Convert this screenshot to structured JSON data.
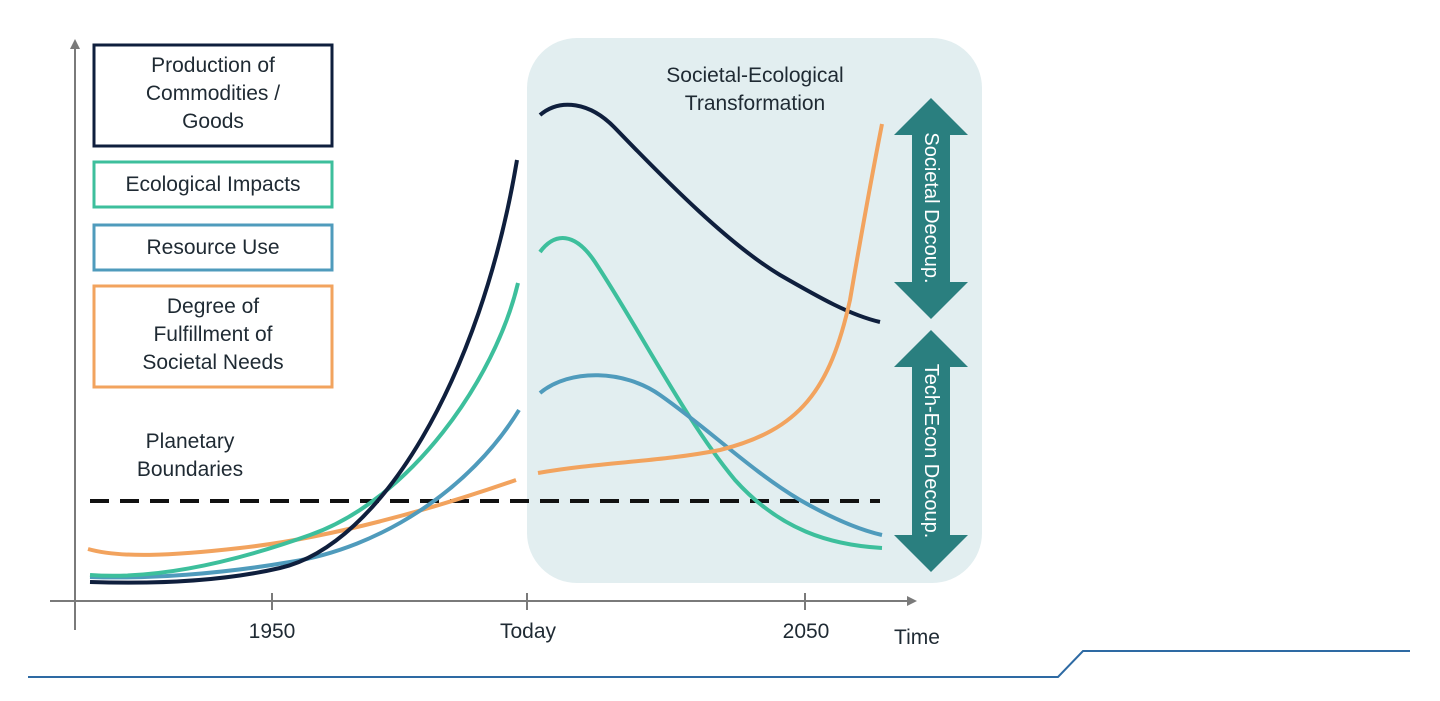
{
  "legend": {
    "production": "Production of\nCommodities /\nGoods",
    "ecological": "Ecological Impacts",
    "resource": "Resource Use",
    "needs": "Degree of\nFulfillment of\nSocietal Needs"
  },
  "planetary_label": "Planetary\nBoundaries",
  "transformation_title": "Societal-Ecological\nTransformation",
  "arrows": {
    "societal": "Societal Decoup.",
    "tech": "Tech-Econ Decoup."
  },
  "axis": {
    "xlabel": "Time",
    "ticks": [
      "1950",
      "Today",
      "2050"
    ]
  },
  "colors": {
    "production": "#0f1f3d",
    "ecological": "#3dbf9c",
    "resource": "#4f9bbc",
    "needs": "#f2a35e",
    "panel": "#e2eef0",
    "arrow": "#2a7f7f",
    "axis": "#7a7a7a",
    "footer": "#2e6aa3"
  }
}
